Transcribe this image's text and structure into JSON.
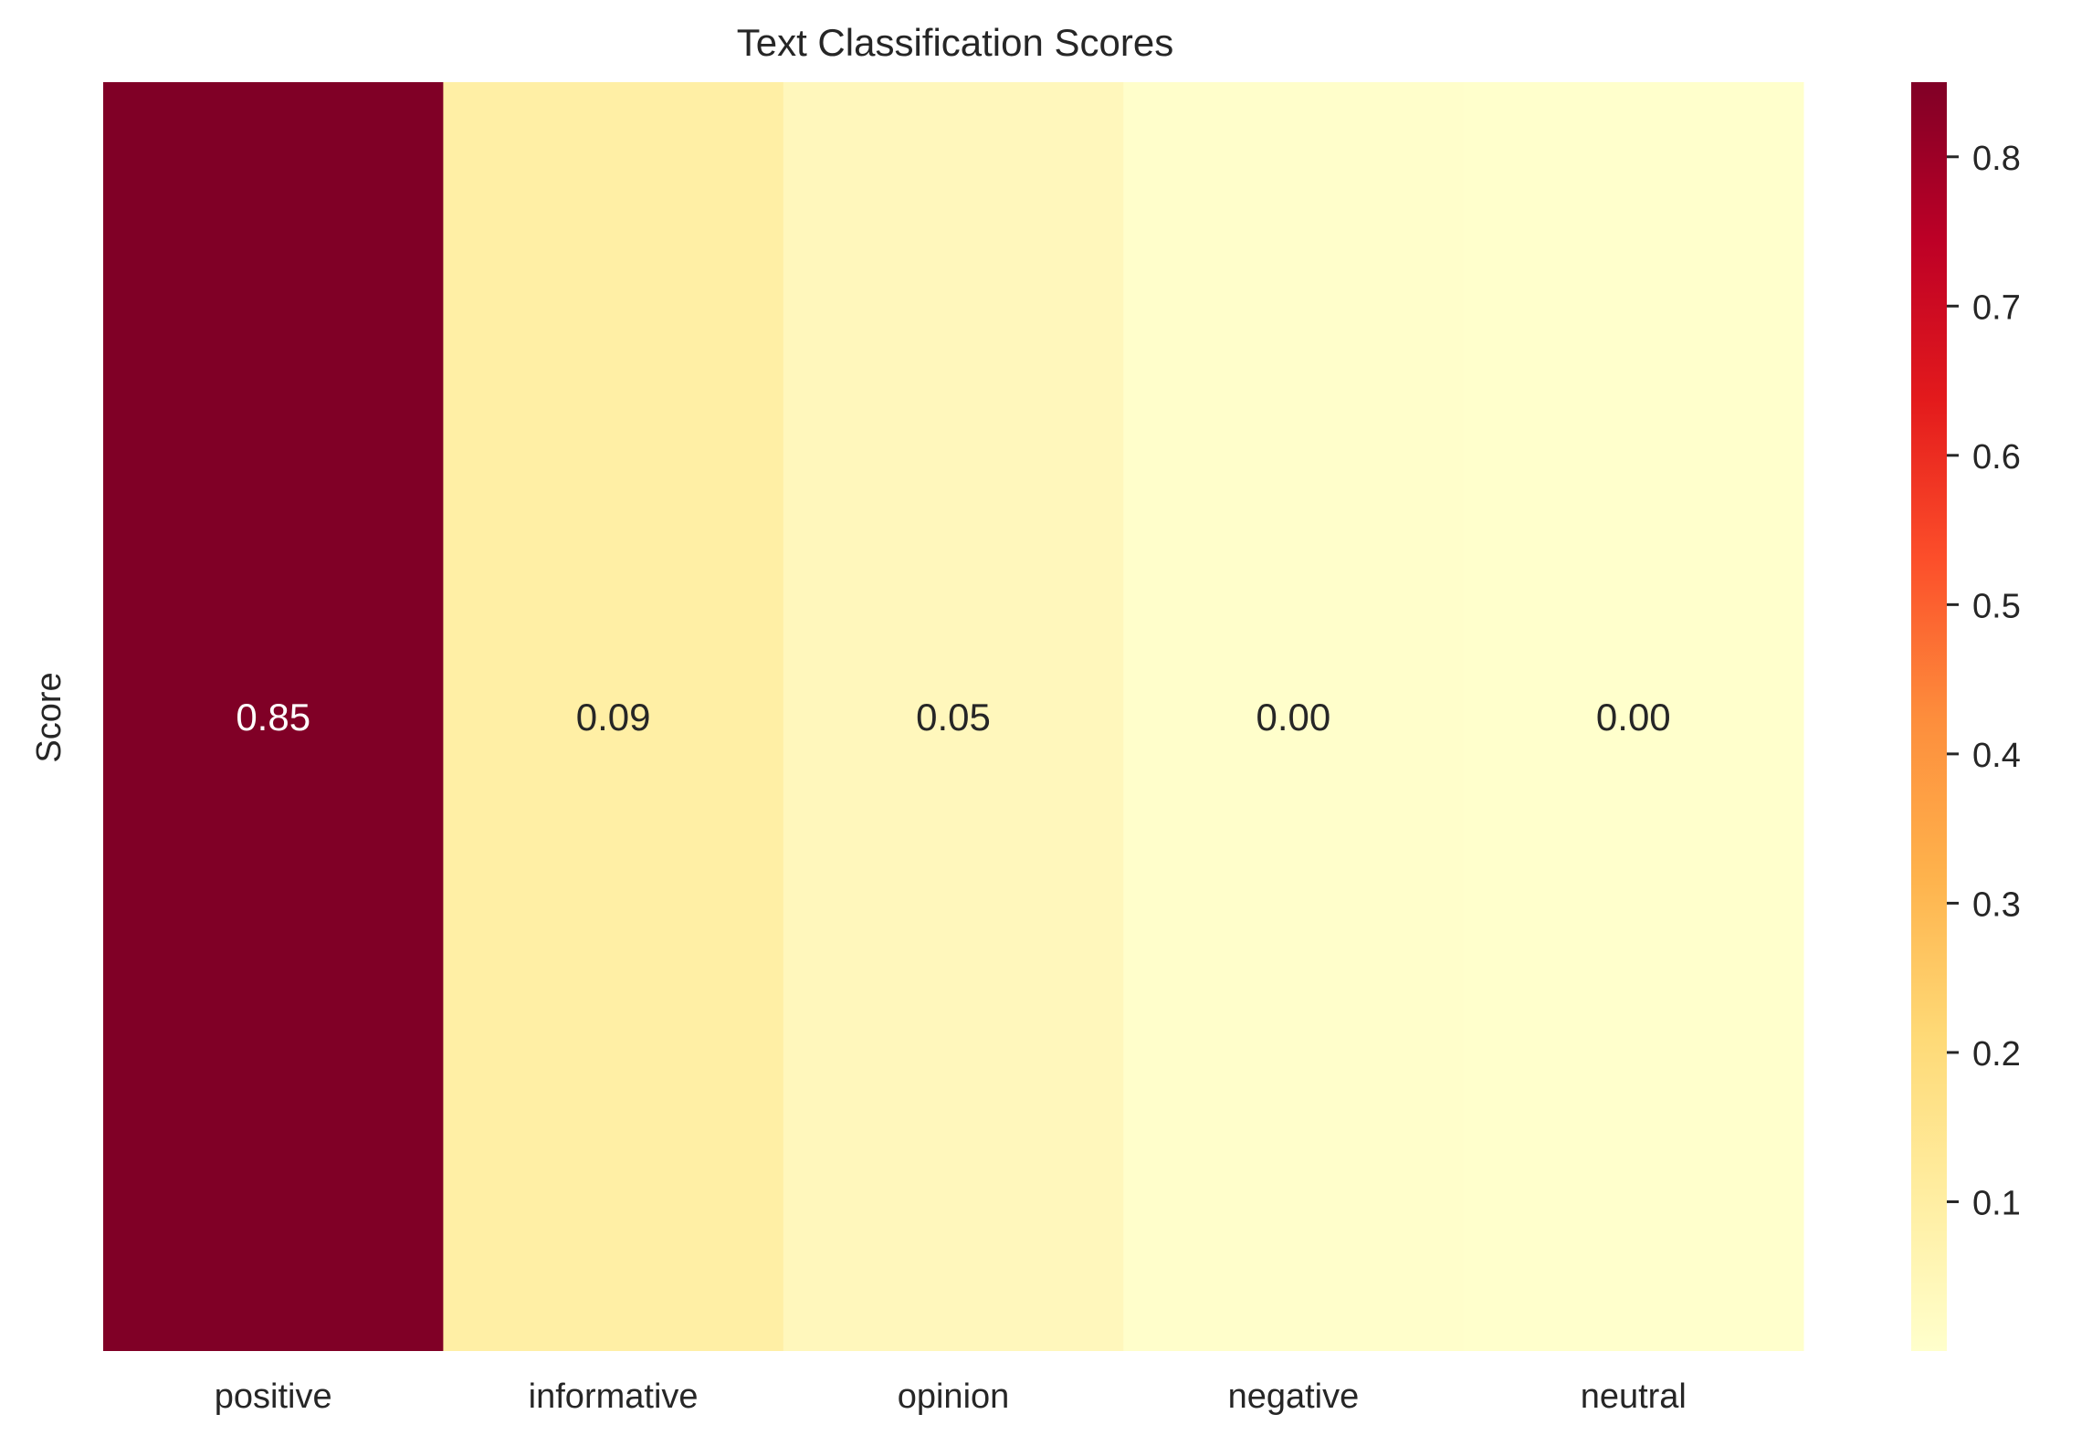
{
  "chart_data": {
    "type": "heatmap",
    "title": "Text Classification Scores",
    "xlabel": "",
    "ylabel": "Score",
    "categories": [
      "positive",
      "informative",
      "opinion",
      "negative",
      "neutral"
    ],
    "values": [
      0.85,
      0.09,
      0.05,
      0.0,
      0.0
    ],
    "cell_labels": [
      "0.85",
      "0.09",
      "0.05",
      "0.00",
      "0.00"
    ],
    "cell_colors": [
      "#800026",
      "#ffefa5",
      "#fff7bc",
      "#fffecb",
      "#ffffcc"
    ],
    "colorbar": {
      "colormap": "YlOrRd",
      "range": [
        0.0,
        0.85
      ],
      "ticks": [
        0.1,
        0.2,
        0.3,
        0.4,
        0.5,
        0.6,
        0.7,
        0.8
      ],
      "tick_labels": [
        "0.1",
        "0.2",
        "0.3",
        "0.4",
        "0.5",
        "0.6",
        "0.7",
        "0.8"
      ]
    },
    "grid": false,
    "legend": "none"
  }
}
